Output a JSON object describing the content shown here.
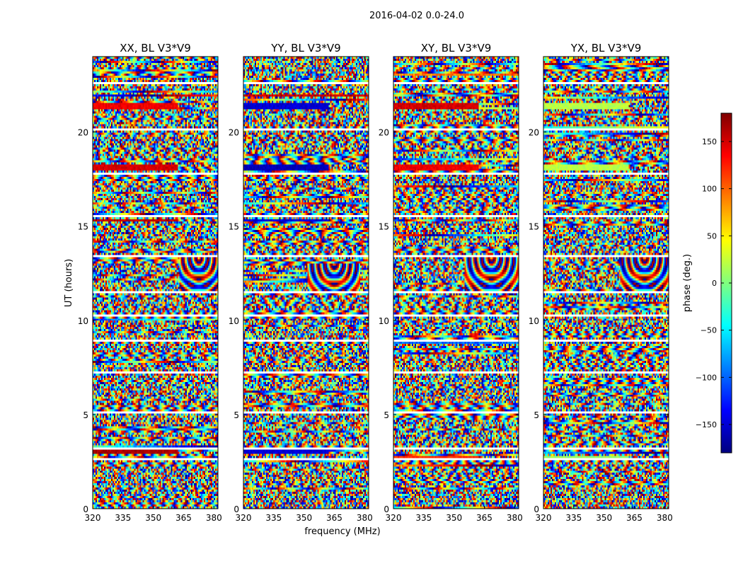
{
  "figure_title": "2016-04-02 0.0-24.0",
  "xlabel": "frequency (MHz)",
  "ylabel": "UT (hours)",
  "colorbar": {
    "label": "phase (deg.)",
    "range": [
      -180,
      180
    ],
    "ticks": [
      -150,
      -100,
      -50,
      0,
      50,
      100,
      150
    ],
    "tick_labels": [
      "−150",
      "−100",
      "−50",
      "0",
      "50",
      "100",
      "150"
    ],
    "colormap": "jet",
    "colors": [
      "#00007f",
      "#0000ff",
      "#007fff",
      "#00ffff",
      "#7fff7f",
      "#ffff00",
      "#ff7f00",
      "#ff0000",
      "#7f0000"
    ]
  },
  "chart_data": [
    {
      "type": "heatmap",
      "title": "XX, BL V3*V9",
      "xlim": [
        320,
        382
      ],
      "ylim": [
        0,
        24
      ],
      "xticks": [
        320,
        335,
        350,
        365,
        380
      ],
      "yticks": [
        0,
        5,
        10,
        15,
        20
      ],
      "value_range": [
        -180,
        180
      ],
      "value_units": "phase (deg.)",
      "features": {
        "flagged_gap_hours": [
          2.7,
          3.3,
          5.2,
          7.3,
          9.0,
          10.3,
          11.5,
          13.5,
          15.6,
          17.8,
          20.2,
          22.6
        ],
        "coherent_bands_hours": [
          [
            2.9,
            3.1,
            165
          ],
          [
            15.2,
            15.35,
            160
          ],
          [
            17.95,
            18.25,
            150
          ],
          [
            21.2,
            21.5,
            140
          ]
        ],
        "fringe_feature": {
          "t": [
            11.5,
            13.3
          ],
          "f": [
            363,
            382
          ]
        }
      }
    },
    {
      "type": "heatmap",
      "title": "YY, BL V3*V9",
      "xlim": [
        320,
        382
      ],
      "ylim": [
        0,
        24
      ],
      "xticks": [
        320,
        335,
        350,
        365,
        380
      ],
      "yticks": [
        0,
        5,
        10,
        15,
        20
      ],
      "value_range": [
        -180,
        180
      ],
      "value_units": "phase (deg.)",
      "features": {
        "flagged_gap_hours": [
          2.7,
          3.3,
          5.2,
          7.3,
          9.0,
          10.3,
          11.5,
          13.5,
          15.6,
          17.8,
          20.2,
          22.6
        ],
        "coherent_bands_hours": [
          [
            2.9,
            3.1,
            -150
          ],
          [
            15.2,
            15.35,
            -150
          ],
          [
            17.95,
            18.25,
            -160
          ],
          [
            21.2,
            21.5,
            -150
          ]
        ],
        "fringe_feature": {
          "t": [
            11.5,
            13.0
          ],
          "f": [
            352,
            378
          ]
        }
      }
    },
    {
      "type": "heatmap",
      "title": "XY, BL V3*V9",
      "xlim": [
        320,
        382
      ],
      "ylim": [
        0,
        24
      ],
      "xticks": [
        320,
        335,
        350,
        365,
        380
      ],
      "yticks": [
        0,
        5,
        10,
        15,
        20
      ],
      "value_range": [
        -180,
        180
      ],
      "value_units": "phase (deg.)",
      "features": {
        "flagged_gap_hours": [
          2.7,
          3.3,
          5.2,
          7.3,
          9.0,
          10.3,
          11.5,
          13.5,
          15.6,
          17.8,
          20.2,
          22.6
        ],
        "coherent_bands_hours": [
          [
            2.6,
            2.8,
            120
          ],
          [
            17.95,
            18.25,
            140
          ],
          [
            21.2,
            21.5,
            150
          ]
        ],
        "fringe_feature": {
          "t": [
            11.5,
            13.3
          ],
          "f": [
            355,
            382
          ]
        }
      }
    },
    {
      "type": "heatmap",
      "title": "YX, BL V3*V9",
      "xlim": [
        320,
        382
      ],
      "ylim": [
        0,
        24
      ],
      "xticks": [
        320,
        335,
        350,
        365,
        380
      ],
      "yticks": [
        0,
        5,
        10,
        15,
        20
      ],
      "value_range": [
        -180,
        180
      ],
      "value_units": "phase (deg.)",
      "features": {
        "flagged_gap_hours": [
          2.7,
          3.3,
          5.2,
          7.3,
          9.0,
          10.3,
          11.5,
          13.5,
          15.6,
          17.8,
          20.2,
          22.6
        ],
        "coherent_bands_hours": [
          [
            2.6,
            2.8,
            10
          ],
          [
            17.95,
            18.25,
            20
          ],
          [
            21.2,
            21.5,
            20
          ]
        ],
        "fringe_feature": {
          "t": [
            11.5,
            13.3
          ],
          "f": [
            358,
            382
          ]
        }
      }
    }
  ]
}
